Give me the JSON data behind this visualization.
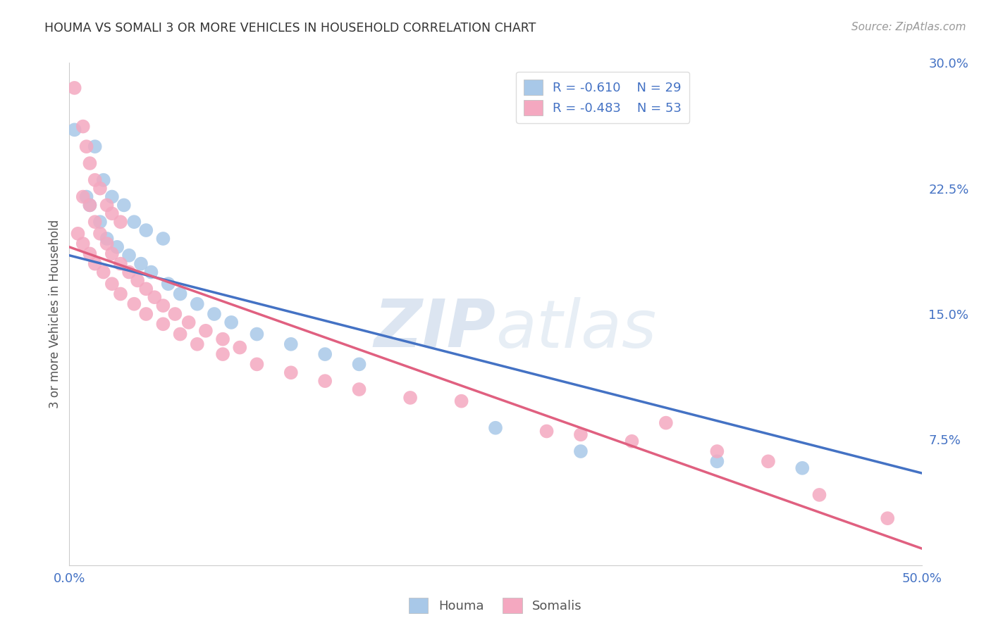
{
  "title": "HOUMA VS SOMALI 3 OR MORE VEHICLES IN HOUSEHOLD CORRELATION CHART",
  "source": "Source: ZipAtlas.com",
  "ylabel": "3 or more Vehicles in Household",
  "watermark_zip": "ZIP",
  "watermark_atlas": "atlas",
  "x_min": 0.0,
  "x_max": 0.5,
  "y_min": 0.0,
  "y_max": 0.3,
  "y_ticks_right": [
    0.0,
    0.075,
    0.15,
    0.225,
    0.3
  ],
  "y_tick_labels_right": [
    "",
    "7.5%",
    "15.0%",
    "22.5%",
    "30.0%"
  ],
  "houma_color": "#a8c8e8",
  "somali_color": "#f4a8c0",
  "houma_line_color": "#4472c4",
  "somali_line_color": "#e06080",
  "houma_R": -0.61,
  "houma_N": 29,
  "somali_R": -0.483,
  "somali_N": 53,
  "houma_points": [
    [
      0.003,
      0.26
    ],
    [
      0.015,
      0.25
    ],
    [
      0.02,
      0.23
    ],
    [
      0.025,
      0.22
    ],
    [
      0.032,
      0.215
    ],
    [
      0.038,
      0.205
    ],
    [
      0.045,
      0.2
    ],
    [
      0.055,
      0.195
    ],
    [
      0.01,
      0.22
    ],
    [
      0.012,
      0.215
    ],
    [
      0.018,
      0.205
    ],
    [
      0.022,
      0.195
    ],
    [
      0.028,
      0.19
    ],
    [
      0.035,
      0.185
    ],
    [
      0.042,
      0.18
    ],
    [
      0.048,
      0.175
    ],
    [
      0.058,
      0.168
    ],
    [
      0.065,
      0.162
    ],
    [
      0.075,
      0.156
    ],
    [
      0.085,
      0.15
    ],
    [
      0.095,
      0.145
    ],
    [
      0.11,
      0.138
    ],
    [
      0.13,
      0.132
    ],
    [
      0.15,
      0.126
    ],
    [
      0.17,
      0.12
    ],
    [
      0.25,
      0.082
    ],
    [
      0.3,
      0.068
    ],
    [
      0.38,
      0.062
    ],
    [
      0.43,
      0.058
    ]
  ],
  "somali_points": [
    [
      0.003,
      0.285
    ],
    [
      0.008,
      0.262
    ],
    [
      0.01,
      0.25
    ],
    [
      0.012,
      0.24
    ],
    [
      0.015,
      0.23
    ],
    [
      0.018,
      0.225
    ],
    [
      0.022,
      0.215
    ],
    [
      0.025,
      0.21
    ],
    [
      0.03,
      0.205
    ],
    [
      0.008,
      0.22
    ],
    [
      0.012,
      0.215
    ],
    [
      0.015,
      0.205
    ],
    [
      0.018,
      0.198
    ],
    [
      0.022,
      0.192
    ],
    [
      0.025,
      0.186
    ],
    [
      0.03,
      0.18
    ],
    [
      0.035,
      0.175
    ],
    [
      0.04,
      0.17
    ],
    [
      0.045,
      0.165
    ],
    [
      0.05,
      0.16
    ],
    [
      0.055,
      0.155
    ],
    [
      0.062,
      0.15
    ],
    [
      0.07,
      0.145
    ],
    [
      0.08,
      0.14
    ],
    [
      0.09,
      0.135
    ],
    [
      0.1,
      0.13
    ],
    [
      0.005,
      0.198
    ],
    [
      0.008,
      0.192
    ],
    [
      0.012,
      0.186
    ],
    [
      0.015,
      0.18
    ],
    [
      0.02,
      0.175
    ],
    [
      0.025,
      0.168
    ],
    [
      0.03,
      0.162
    ],
    [
      0.038,
      0.156
    ],
    [
      0.045,
      0.15
    ],
    [
      0.055,
      0.144
    ],
    [
      0.065,
      0.138
    ],
    [
      0.075,
      0.132
    ],
    [
      0.09,
      0.126
    ],
    [
      0.11,
      0.12
    ],
    [
      0.13,
      0.115
    ],
    [
      0.15,
      0.11
    ],
    [
      0.17,
      0.105
    ],
    [
      0.2,
      0.1
    ],
    [
      0.23,
      0.098
    ],
    [
      0.28,
      0.08
    ],
    [
      0.3,
      0.078
    ],
    [
      0.33,
      0.074
    ],
    [
      0.35,
      0.085
    ],
    [
      0.38,
      0.068
    ],
    [
      0.41,
      0.062
    ],
    [
      0.44,
      0.042
    ],
    [
      0.48,
      0.028
    ]
  ],
  "bg_color": "#ffffff",
  "grid_color": "#cccccc",
  "title_color": "#333333",
  "axis_color": "#4472c4",
  "legend_text_color": "#4472c4"
}
